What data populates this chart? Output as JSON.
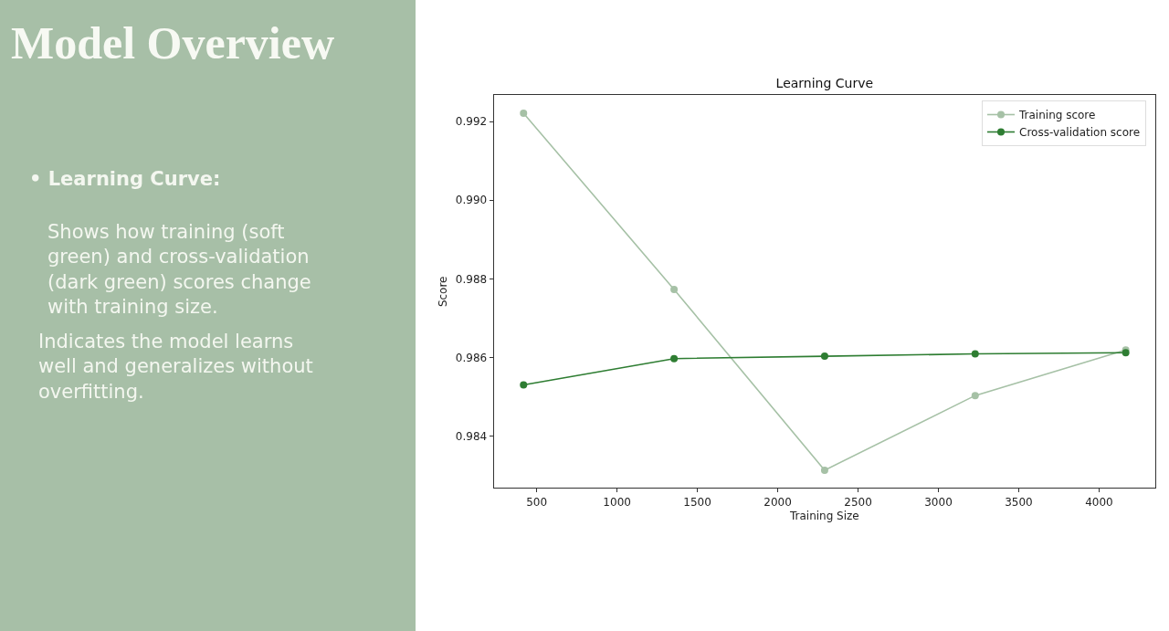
{
  "chart_data": [
    {
      "type": "other",
      "title": "Model Overview",
      "annotations": [
        "• Learning Curve:",
        "Shows how training (soft\ngreen) and cross-validation\n(dark green) scores change\nwith training size.",
        "Indicates the model learns\nwell and generalizes without\noverfitting."
      ]
    },
    {
      "type": "line",
      "title": "Learning Curve",
      "xlabel": "Training Size",
      "ylabel": "Score",
      "x": [
        418,
        1355,
        2292,
        3229,
        4166
      ],
      "series": [
        {
          "name": "Training score",
          "color": "#a6c1a6",
          "values": [
            0.99221,
            0.98773,
            0.98313,
            0.98503,
            0.98619
          ]
        },
        {
          "name": "Cross-validation score",
          "color": "#2e7d32",
          "values": [
            0.9853,
            0.98597,
            0.98603,
            0.98609,
            0.98612
          ]
        }
      ],
      "xlim": [
        233,
        4350
      ],
      "ylim": [
        0.98268,
        0.99267
      ],
      "xticks": [
        500,
        1000,
        1500,
        2000,
        2500,
        3000,
        3500,
        4000
      ],
      "yticks": [
        0.984,
        0.986,
        0.988,
        {
          "value": 0.99,
          "label": "0.990"
        },
        0.992
      ],
      "legend": "top right",
      "marker": "circle",
      "line_style": "solid"
    }
  ]
}
